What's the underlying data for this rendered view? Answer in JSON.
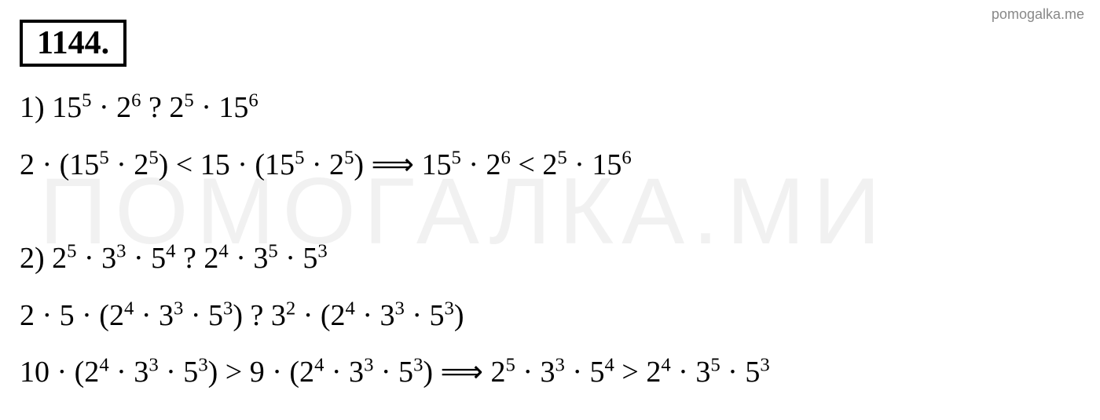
{
  "watermark_url": "pomogalka.me",
  "watermark_bg": "ПОМОГАЛКА.МИ",
  "problem_number": "1144.",
  "lines": {
    "l1": "1) 15",
    "l1_sup1": "5",
    "l1_mid1": " · 2",
    "l1_sup2": "6",
    "l1_q": " ? 2",
    "l1_sup3": "5",
    "l1_mid2": " · 15",
    "l1_sup4": "6",
    "l2_a": "2 · (15",
    "l2_sup1": "5",
    "l2_b": " · 2",
    "l2_sup2": "5",
    "l2_c": ")  < 15 · (15",
    "l2_sup3": "5",
    "l2_d": " · 2",
    "l2_sup4": "5",
    "l2_e": ")  ⟹ 15",
    "l2_sup5": "5",
    "l2_f": " · 2",
    "l2_sup6": "6",
    "l2_g": " < 2",
    "l2_sup7": "5",
    "l2_h": " · 15",
    "l2_sup8": "6",
    "l3_a": "2) 2",
    "l3_sup1": "5",
    "l3_b": " · 3",
    "l3_sup2": "3",
    "l3_c": " · 5",
    "l3_sup3": "4",
    "l3_d": " ? 2",
    "l3_sup4": "4",
    "l3_e": " · 3",
    "l3_sup5": "5",
    "l3_f": " · 5",
    "l3_sup6": "3",
    "l4_a": "2 · 5 · (2",
    "l4_sup1": "4",
    "l4_b": " · 3",
    "l4_sup2": "3",
    "l4_c": " · 5",
    "l4_sup3": "3",
    "l4_d": ")  ? 3",
    "l4_sup4": "2",
    "l4_e": " · (2",
    "l4_sup5": "4",
    "l4_f": " · 3",
    "l4_sup6": "3",
    "l4_g": " · 5",
    "l4_sup7": "3",
    "l4_h": ")",
    "l5_a": "10 · (2",
    "l5_sup1": "4",
    "l5_b": " · 3",
    "l5_sup2": "3",
    "l5_c": " · 5",
    "l5_sup3": "3",
    "l5_d": ")  > 9 · (2",
    "l5_sup4": "4",
    "l5_e": " · 3",
    "l5_sup5": "3",
    "l5_f": " · 5",
    "l5_sup6": "3",
    "l5_g": ")  ⟹ 2",
    "l5_sup7": "5",
    "l5_h": " · 3",
    "l5_sup8": "3",
    "l5_i": " · 5",
    "l5_sup9": "4",
    "l5_j": " > 2",
    "l5_sup10": "4",
    "l5_k": " · 3",
    "l5_sup11": "5",
    "l5_l": " · 5",
    "l5_sup12": "3"
  },
  "styling": {
    "background_color": "#ffffff",
    "text_color": "#000000",
    "font_family": "Times New Roman",
    "font_size_main": 38,
    "font_size_number": 42,
    "border_width": 4,
    "watermark_color": "rgba(200,200,200,0.25)",
    "watermark_url_color": "#888888"
  }
}
